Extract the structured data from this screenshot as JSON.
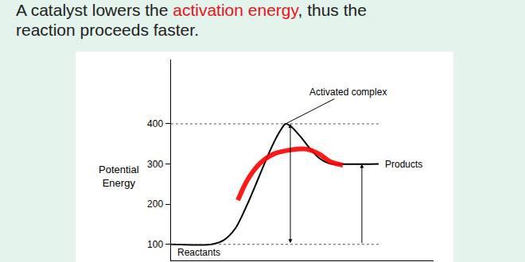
{
  "chart_data": {
    "type": "line",
    "title": [
      [
        {
          "text": "A catalyst lowers the "
        },
        {
          "text": "activation energy",
          "color": "#e8141b"
        },
        {
          "text": ", thus the"
        }
      ],
      [
        {
          "text": "reaction proceeds faster."
        }
      ]
    ],
    "y_label": "Potential Energy",
    "labels": {
      "peak": "Activated complex",
      "products": "Products",
      "reactants": "Reactants"
    },
    "series": [
      {
        "color": "#000000",
        "line_style": "solid",
        "x": [
          0,
          17,
          22,
          27,
          32,
          37,
          42,
          46,
          48,
          50,
          54,
          58,
          62,
          66,
          68,
          87
        ],
        "values": [
          100,
          100,
          110,
          140,
          200,
          270,
          340,
          385,
          400,
          395,
          370,
          340,
          315,
          302,
          300,
          300
        ]
      },
      {
        "color": "#ff0000",
        "line_style": "solid",
        "x": [
          28,
          32,
          37,
          43,
          50,
          57,
          62,
          67,
          72
        ],
        "values": [
          210,
          260,
          300,
          325,
          335,
          337,
          325,
          305,
          297
        ]
      }
    ],
    "xlim": [
      0,
      110
    ],
    "xticks": [],
    "ylim": [
      60,
      560
    ],
    "yticks": [
      100,
      200,
      300,
      400
    ],
    "tick_labels": "y",
    "grid": false
  }
}
